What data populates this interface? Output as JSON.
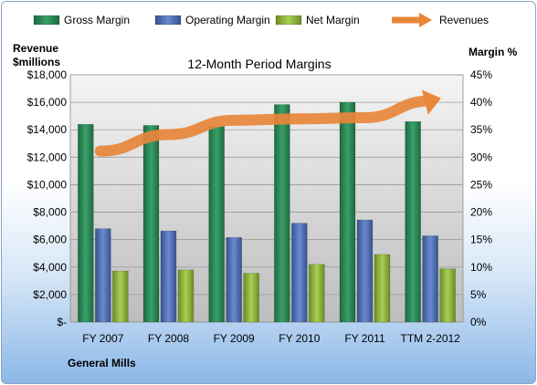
{
  "chart_data": {
    "type": "bar",
    "title": "12-Month Period Margins",
    "company": "General Mills",
    "ylabel_left": [
      "Revenue",
      "$millions"
    ],
    "ylabel_right": "Margin %",
    "categories": [
      "FY 2007",
      "FY 2008",
      "FY 2009",
      "FY 2010",
      "FY 2011",
      "TTM 2-2012"
    ],
    "left_ticks": [
      "$-",
      "$2,000",
      "$4,000",
      "$6,000",
      "$8,000",
      "$10,000",
      "$12,000",
      "$14,000",
      "$16,000",
      "$18,000"
    ],
    "right_ticks": [
      "0%",
      "5%",
      "10%",
      "15%",
      "20%",
      "25%",
      "30%",
      "35%",
      "40%",
      "45%"
    ],
    "ylim_left": [
      0,
      18000
    ],
    "ylim_right": [
      0,
      45
    ],
    "series": [
      {
        "name": "Gross Margin",
        "axis": "right",
        "color": "#2e8b57",
        "values": [
          36.0,
          35.8,
          35.6,
          39.6,
          40.0,
          36.5
        ]
      },
      {
        "name": "Operating Margin",
        "axis": "right",
        "color": "#4f6fb5",
        "values": [
          17.0,
          16.6,
          15.4,
          18.0,
          18.6,
          15.7
        ]
      },
      {
        "name": "Net Margin",
        "axis": "right",
        "color": "#8db53a",
        "values": [
          9.3,
          9.5,
          8.9,
          10.5,
          12.3,
          9.7
        ]
      },
      {
        "name": "Revenues",
        "axis": "left",
        "type": "line",
        "color": "#e8863a",
        "values": [
          12442,
          13652,
          14691,
          14797,
          14880,
          16100
        ]
      }
    ],
    "grid": true,
    "legend": "top"
  }
}
